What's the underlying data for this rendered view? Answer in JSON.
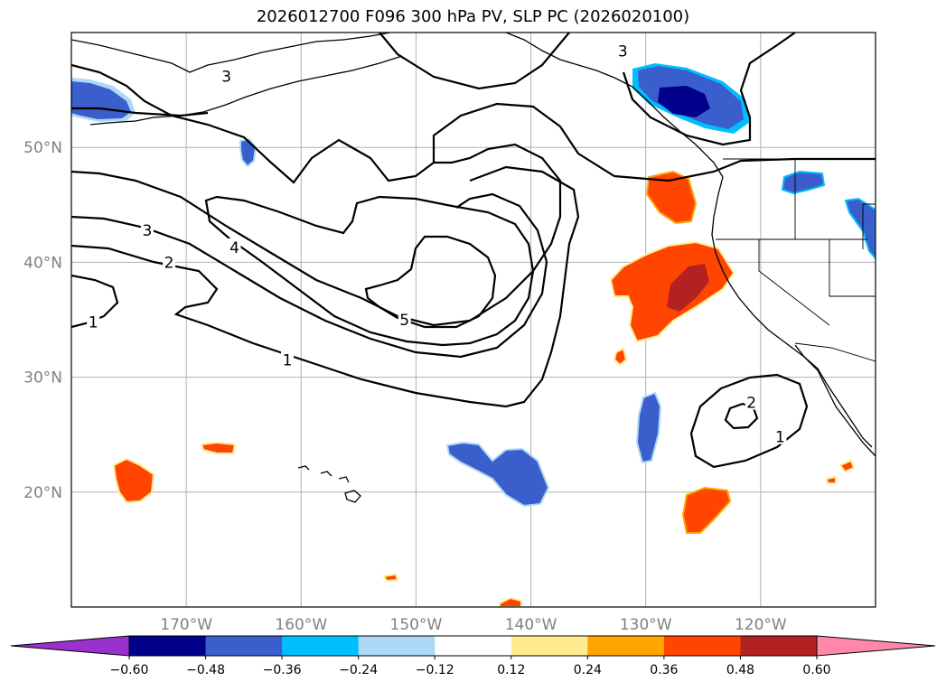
{
  "chart_data": {
    "type": "contour-map",
    "title": "2026012700 F096 300 hPa PV, SLP PC (2026020100)",
    "x_ticks": [
      {
        "lon": -170,
        "label": "170°W"
      },
      {
        "lon": -160,
        "label": "160°W"
      },
      {
        "lon": -150,
        "label": "150°W"
      },
      {
        "lon": -140,
        "label": "140°W"
      },
      {
        "lon": -130,
        "label": "130°W"
      },
      {
        "lon": -120,
        "label": "120°W"
      }
    ],
    "y_ticks": [
      {
        "lat": 20,
        "label": "20°N"
      },
      {
        "lat": 30,
        "label": "30°N"
      },
      {
        "lat": 40,
        "label": "40°N"
      },
      {
        "lat": 50,
        "label": "50°N"
      }
    ],
    "lon_range": [
      -180,
      -110
    ],
    "lat_range": [
      10,
      60
    ],
    "grid": true,
    "colorbar": {
      "levels": [
        "−0.60",
        "−0.48",
        "−0.36",
        "−0.24",
        "−0.12",
        "0.12",
        "0.24",
        "0.36",
        "0.48",
        "0.60"
      ],
      "colors": [
        "#9932cc",
        "#00008b",
        "#3a5fcd",
        "#00bfff",
        "#add8f7",
        "#ffffff",
        "#ffeb8f",
        "#ffa500",
        "#ff4500",
        "#b22222",
        "#ff88aa"
      ],
      "extend": "both"
    },
    "contour_labels": [
      {
        "text": "3",
        "lon": -166.5,
        "lat": 56.2
      },
      {
        "text": "3",
        "lon": -173.4,
        "lat": 42.8
      },
      {
        "text": "4",
        "lon": -165.8,
        "lat": 41.3
      },
      {
        "text": "2",
        "lon": -171.5,
        "lat": 40.0
      },
      {
        "text": "5",
        "lon": -151.0,
        "lat": 35.0
      },
      {
        "text": "1",
        "lon": -178.1,
        "lat": 34.8
      },
      {
        "text": "1",
        "lon": -161.2,
        "lat": 31.5
      },
      {
        "text": "3",
        "lon": -132.0,
        "lat": 58.4
      },
      {
        "text": "2",
        "lon": -120.8,
        "lat": 27.8
      },
      {
        "text": "1",
        "lon": -118.3,
        "lat": 24.8
      }
    ]
  }
}
